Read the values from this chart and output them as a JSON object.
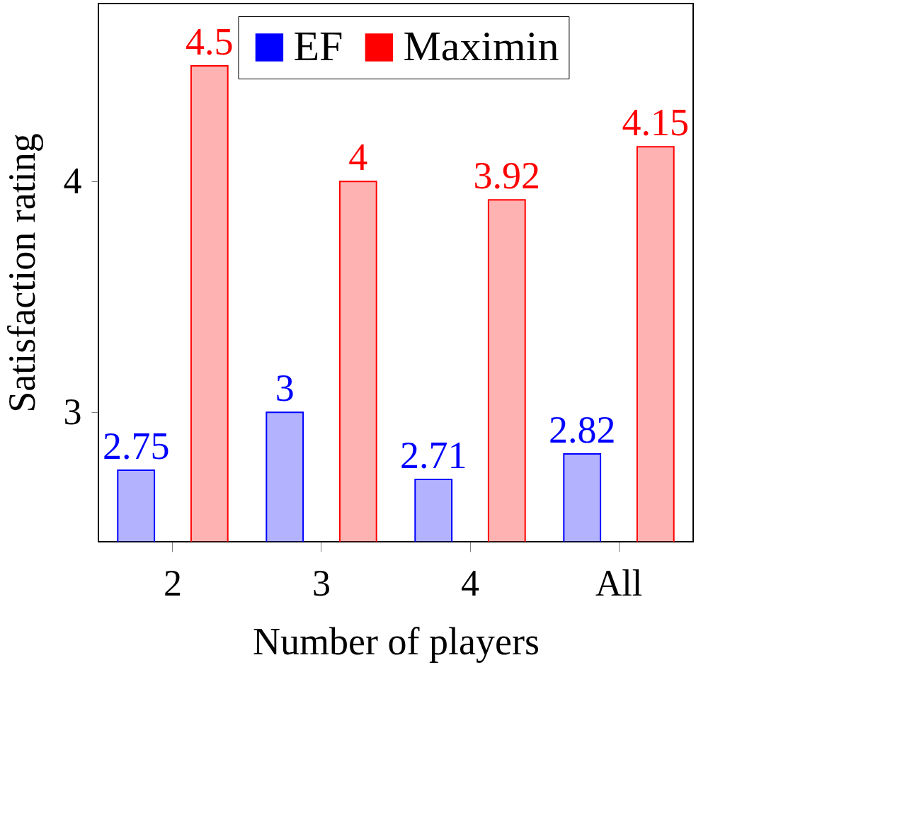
{
  "chart_data": {
    "type": "bar",
    "xlabel": "Number of players",
    "ylabel": "Satisfaction rating",
    "categories": [
      "2",
      "3",
      "4",
      "All"
    ],
    "series": [
      {
        "name": "EF",
        "color": "#0000ff",
        "values": [
          2.75,
          3,
          2.71,
          2.82
        ]
      },
      {
        "name": "Maximin",
        "color": "#ff0000",
        "values": [
          4.5,
          4,
          3.92,
          4.15
        ]
      }
    ],
    "ylim": [
      2.44,
      4.77
    ],
    "yticks": [
      3,
      4
    ],
    "data_labels": true,
    "legend": "top",
    "grid": false
  }
}
